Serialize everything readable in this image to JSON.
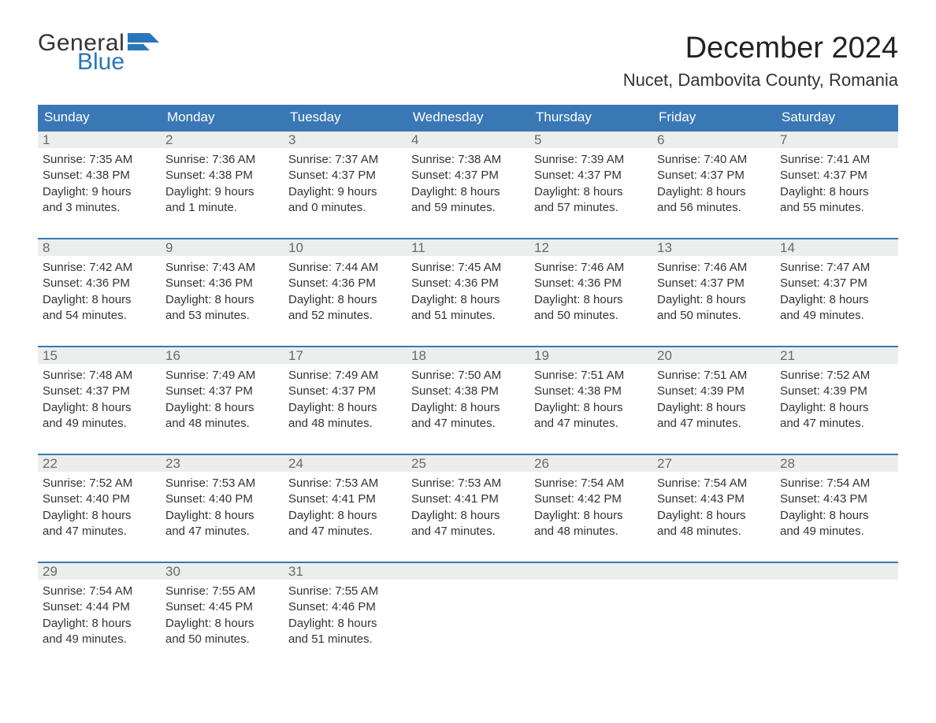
{
  "logo": {
    "text1": "General",
    "text2": "Blue",
    "flag_color": "#2976bb"
  },
  "title": "December 2024",
  "location": "Nucet, Dambovita County, Romania",
  "colors": {
    "header_bg": "#3a78b5",
    "header_text": "#ffffff",
    "daynum_bg": "#eceded",
    "daynum_text": "#6a6a6a",
    "week_border": "#3a78b5",
    "body_text": "#333333",
    "background": "#ffffff",
    "logo_blue": "#2976bb"
  },
  "days_of_week": [
    "Sunday",
    "Monday",
    "Tuesday",
    "Wednesday",
    "Thursday",
    "Friday",
    "Saturday"
  ],
  "weeks": [
    [
      {
        "n": "1",
        "sr": "Sunrise: 7:35 AM",
        "ss": "Sunset: 4:38 PM",
        "d1": "Daylight: 9 hours",
        "d2": "and 3 minutes."
      },
      {
        "n": "2",
        "sr": "Sunrise: 7:36 AM",
        "ss": "Sunset: 4:38 PM",
        "d1": "Daylight: 9 hours",
        "d2": "and 1 minute."
      },
      {
        "n": "3",
        "sr": "Sunrise: 7:37 AM",
        "ss": "Sunset: 4:37 PM",
        "d1": "Daylight: 9 hours",
        "d2": "and 0 minutes."
      },
      {
        "n": "4",
        "sr": "Sunrise: 7:38 AM",
        "ss": "Sunset: 4:37 PM",
        "d1": "Daylight: 8 hours",
        "d2": "and 59 minutes."
      },
      {
        "n": "5",
        "sr": "Sunrise: 7:39 AM",
        "ss": "Sunset: 4:37 PM",
        "d1": "Daylight: 8 hours",
        "d2": "and 57 minutes."
      },
      {
        "n": "6",
        "sr": "Sunrise: 7:40 AM",
        "ss": "Sunset: 4:37 PM",
        "d1": "Daylight: 8 hours",
        "d2": "and 56 minutes."
      },
      {
        "n": "7",
        "sr": "Sunrise: 7:41 AM",
        "ss": "Sunset: 4:37 PM",
        "d1": "Daylight: 8 hours",
        "d2": "and 55 minutes."
      }
    ],
    [
      {
        "n": "8",
        "sr": "Sunrise: 7:42 AM",
        "ss": "Sunset: 4:36 PM",
        "d1": "Daylight: 8 hours",
        "d2": "and 54 minutes."
      },
      {
        "n": "9",
        "sr": "Sunrise: 7:43 AM",
        "ss": "Sunset: 4:36 PM",
        "d1": "Daylight: 8 hours",
        "d2": "and 53 minutes."
      },
      {
        "n": "10",
        "sr": "Sunrise: 7:44 AM",
        "ss": "Sunset: 4:36 PM",
        "d1": "Daylight: 8 hours",
        "d2": "and 52 minutes."
      },
      {
        "n": "11",
        "sr": "Sunrise: 7:45 AM",
        "ss": "Sunset: 4:36 PM",
        "d1": "Daylight: 8 hours",
        "d2": "and 51 minutes."
      },
      {
        "n": "12",
        "sr": "Sunrise: 7:46 AM",
        "ss": "Sunset: 4:36 PM",
        "d1": "Daylight: 8 hours",
        "d2": "and 50 minutes."
      },
      {
        "n": "13",
        "sr": "Sunrise: 7:46 AM",
        "ss": "Sunset: 4:37 PM",
        "d1": "Daylight: 8 hours",
        "d2": "and 50 minutes."
      },
      {
        "n": "14",
        "sr": "Sunrise: 7:47 AM",
        "ss": "Sunset: 4:37 PM",
        "d1": "Daylight: 8 hours",
        "d2": "and 49 minutes."
      }
    ],
    [
      {
        "n": "15",
        "sr": "Sunrise: 7:48 AM",
        "ss": "Sunset: 4:37 PM",
        "d1": "Daylight: 8 hours",
        "d2": "and 49 minutes."
      },
      {
        "n": "16",
        "sr": "Sunrise: 7:49 AM",
        "ss": "Sunset: 4:37 PM",
        "d1": "Daylight: 8 hours",
        "d2": "and 48 minutes."
      },
      {
        "n": "17",
        "sr": "Sunrise: 7:49 AM",
        "ss": "Sunset: 4:37 PM",
        "d1": "Daylight: 8 hours",
        "d2": "and 48 minutes."
      },
      {
        "n": "18",
        "sr": "Sunrise: 7:50 AM",
        "ss": "Sunset: 4:38 PM",
        "d1": "Daylight: 8 hours",
        "d2": "and 47 minutes."
      },
      {
        "n": "19",
        "sr": "Sunrise: 7:51 AM",
        "ss": "Sunset: 4:38 PM",
        "d1": "Daylight: 8 hours",
        "d2": "and 47 minutes."
      },
      {
        "n": "20",
        "sr": "Sunrise: 7:51 AM",
        "ss": "Sunset: 4:39 PM",
        "d1": "Daylight: 8 hours",
        "d2": "and 47 minutes."
      },
      {
        "n": "21",
        "sr": "Sunrise: 7:52 AM",
        "ss": "Sunset: 4:39 PM",
        "d1": "Daylight: 8 hours",
        "d2": "and 47 minutes."
      }
    ],
    [
      {
        "n": "22",
        "sr": "Sunrise: 7:52 AM",
        "ss": "Sunset: 4:40 PM",
        "d1": "Daylight: 8 hours",
        "d2": "and 47 minutes."
      },
      {
        "n": "23",
        "sr": "Sunrise: 7:53 AM",
        "ss": "Sunset: 4:40 PM",
        "d1": "Daylight: 8 hours",
        "d2": "and 47 minutes."
      },
      {
        "n": "24",
        "sr": "Sunrise: 7:53 AM",
        "ss": "Sunset: 4:41 PM",
        "d1": "Daylight: 8 hours",
        "d2": "and 47 minutes."
      },
      {
        "n": "25",
        "sr": "Sunrise: 7:53 AM",
        "ss": "Sunset: 4:41 PM",
        "d1": "Daylight: 8 hours",
        "d2": "and 47 minutes."
      },
      {
        "n": "26",
        "sr": "Sunrise: 7:54 AM",
        "ss": "Sunset: 4:42 PM",
        "d1": "Daylight: 8 hours",
        "d2": "and 48 minutes."
      },
      {
        "n": "27",
        "sr": "Sunrise: 7:54 AM",
        "ss": "Sunset: 4:43 PM",
        "d1": "Daylight: 8 hours",
        "d2": "and 48 minutes."
      },
      {
        "n": "28",
        "sr": "Sunrise: 7:54 AM",
        "ss": "Sunset: 4:43 PM",
        "d1": "Daylight: 8 hours",
        "d2": "and 49 minutes."
      }
    ],
    [
      {
        "n": "29",
        "sr": "Sunrise: 7:54 AM",
        "ss": "Sunset: 4:44 PM",
        "d1": "Daylight: 8 hours",
        "d2": "and 49 minutes."
      },
      {
        "n": "30",
        "sr": "Sunrise: 7:55 AM",
        "ss": "Sunset: 4:45 PM",
        "d1": "Daylight: 8 hours",
        "d2": "and 50 minutes."
      },
      {
        "n": "31",
        "sr": "Sunrise: 7:55 AM",
        "ss": "Sunset: 4:46 PM",
        "d1": "Daylight: 8 hours",
        "d2": "and 51 minutes."
      },
      null,
      null,
      null,
      null
    ]
  ]
}
